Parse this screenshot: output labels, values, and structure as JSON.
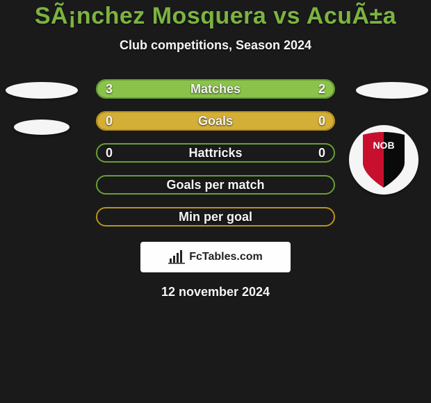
{
  "title": "SÃ¡nchez Mosquera vs AcuÃ±a",
  "subtitle": "Club competitions, Season 2024",
  "date": "12 november 2024",
  "badge_text": "FcTables.com",
  "colors": {
    "accent_green": "#7cb342",
    "accent_yellow": "#c9a227",
    "fill_green": "#8bc34a",
    "fill_yellow": "#d4af37",
    "border_green": "#689f38",
    "border_yellow": "#b8941f",
    "text_light": "#f5f5f5",
    "background": "#1a1a1a",
    "shield_black": "#0a0a0a",
    "shield_red": "#c8102e"
  },
  "rows": [
    {
      "label": "Matches",
      "left": "3",
      "right": "2",
      "left_pct": 60,
      "right_pct": 40,
      "scheme": "green",
      "show_values": true
    },
    {
      "label": "Goals",
      "left": "0",
      "right": "0",
      "left_pct": 50,
      "right_pct": 50,
      "scheme": "yellow",
      "show_values": true
    },
    {
      "label": "Hattricks",
      "left": "0",
      "right": "0",
      "left_pct": 0,
      "right_pct": 0,
      "scheme": "green",
      "show_values": true
    },
    {
      "label": "Goals per match",
      "left": "",
      "right": "",
      "left_pct": 0,
      "right_pct": 0,
      "scheme": "green",
      "show_values": false
    },
    {
      "label": "Min per goal",
      "left": "",
      "right": "",
      "left_pct": 0,
      "right_pct": 0,
      "scheme": "yellow",
      "show_values": false
    }
  ]
}
